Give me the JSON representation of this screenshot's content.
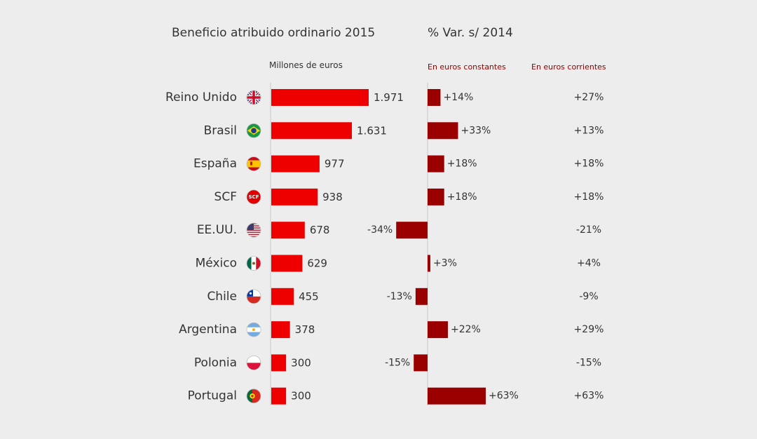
{
  "chart_data": {
    "type": "bar",
    "title": "Beneficio atribuido ordinario 2015",
    "title_right": "% Var. s/ 2014",
    "subtitle_left": "Millones de euros",
    "subtitle_const": "En euros constantes",
    "subtitle_corr": "En euros corrientes",
    "categories": [
      "Reino Unido",
      "Brasil",
      "España",
      "SCF",
      "EE.UU.",
      "México",
      "Chile",
      "Argentina",
      "Polonia",
      "Portugal"
    ],
    "flag_icons": [
      "uk-flag-icon",
      "brazil-flag-icon",
      "spain-flag-icon",
      "scf-badge-icon",
      "usa-flag-icon",
      "mexico-flag-icon",
      "chile-flag-icon",
      "argentina-flag-icon",
      "poland-flag-icon",
      "portugal-flag-icon"
    ],
    "scf_badge_text": "SCF",
    "series": [
      {
        "values": [
          1971,
          1631,
          977,
          938,
          678,
          629,
          455,
          378,
          300,
          300
        ],
        "labels": [
          "1.971",
          "1.631",
          "977",
          "938",
          "678",
          "629",
          "455",
          "378",
          "300",
          "300"
        ],
        "color": "#ee0000"
      },
      {
        "values": [
          14,
          33,
          18,
          18,
          -34,
          3,
          -13,
          22,
          -15,
          63
        ],
        "labels": [
          "+14%",
          "+33%",
          "+18%",
          "+18%",
          "-34%",
          "+3%",
          "-13%",
          "+22%",
          "-15%",
          "+63%"
        ],
        "color": "#9b0000"
      },
      {
        "values": [
          27,
          13,
          18,
          18,
          -21,
          4,
          -9,
          29,
          -15,
          63
        ],
        "labels": [
          "+27%",
          "+13%",
          "+18%",
          "+18%",
          "-21%",
          "+4%",
          "-9%",
          "+29%",
          "-15%",
          "+63%"
        ]
      }
    ],
    "subtitle_color": "#8b0000",
    "axis_color": "#c8c8c8"
  }
}
